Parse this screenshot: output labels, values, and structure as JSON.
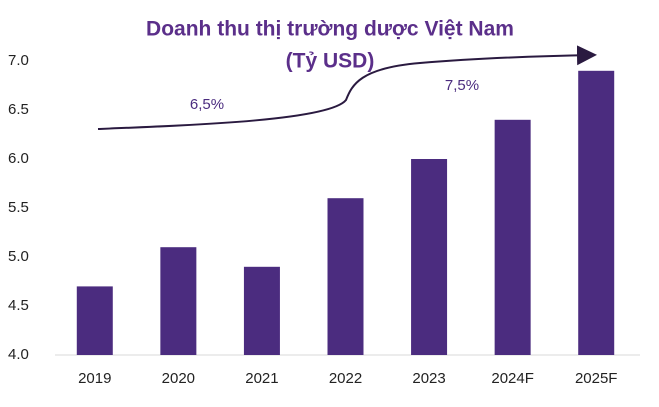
{
  "chart_data": {
    "type": "bar",
    "title": "Doanh thu thị trường dược Việt Nam",
    "subtitle": "(Tỷ USD)",
    "categories": [
      "2019",
      "2020",
      "2021",
      "2022",
      "2023",
      "2024F",
      "2025F"
    ],
    "values": [
      4.7,
      5.1,
      4.9,
      5.6,
      6.0,
      6.4,
      6.9
    ],
    "color": "#4b2c7f",
    "ylim": [
      4,
      7
    ],
    "yticks": [
      {
        "value": 4,
        "label": "4.0"
      },
      4.5,
      {
        "value": 5,
        "label": "5.0"
      },
      5.5,
      {
        "value": 6,
        "label": "6.0"
      },
      6.5,
      {
        "value": 7,
        "label": "7.0"
      }
    ],
    "annotations": [
      "6,5%",
      "7,5%"
    ],
    "grid": false
  }
}
